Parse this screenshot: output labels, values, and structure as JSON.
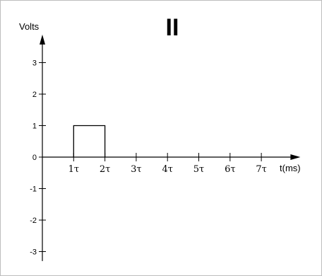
{
  "chart_data": {
    "type": "line",
    "title": "II",
    "ylabel": "Volts",
    "xlabel": "t(ms)",
    "ylim": [
      -3.3,
      3.8
    ],
    "xlim": [
      0,
      7.3
    ],
    "y_ticks": [
      3,
      2,
      1,
      0,
      -1,
      -2,
      -3
    ],
    "y_tick_labels": [
      "3",
      "2",
      "1",
      "0",
      "-1",
      "-2",
      "-3"
    ],
    "x_ticks": [
      1,
      2,
      3,
      4,
      5,
      6,
      7
    ],
    "x_tick_labels": [
      "1τ",
      "2τ",
      "3τ",
      "4τ",
      "5τ",
      "6τ",
      "7τ"
    ],
    "series": [
      {
        "x": [
          1,
          1,
          2,
          2
        ],
        "y": [
          0,
          1,
          1,
          0
        ]
      }
    ],
    "grid": false,
    "colors": {
      "axis": "#000000",
      "signal": "#000000",
      "border": "#bdbdbd"
    }
  }
}
